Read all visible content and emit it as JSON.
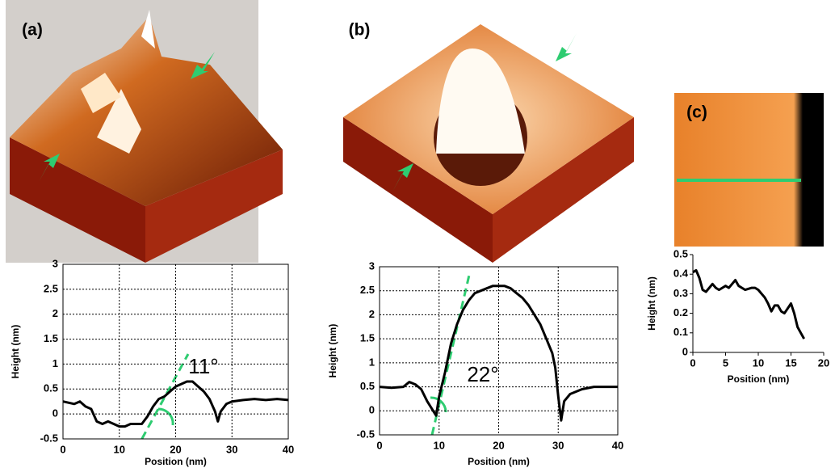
{
  "chart_data": [
    {
      "type": "line",
      "label": "(a)",
      "annotation": "11°",
      "xlabel": "Position (nm)",
      "ylabel": "Height (nm)",
      "color": "#000000",
      "grid": true,
      "x": [
        0,
        2,
        3,
        4,
        5,
        6,
        7,
        8,
        9,
        10,
        11,
        12,
        13,
        14,
        15,
        16,
        17,
        18,
        19,
        20,
        21,
        22,
        23,
        24,
        25,
        26,
        27,
        27.5,
        28,
        29,
        30,
        32,
        34,
        36,
        38,
        40
      ],
      "values": [
        0.25,
        0.2,
        0.25,
        0.15,
        0.1,
        -0.15,
        -0.2,
        -0.15,
        -0.2,
        -0.25,
        -0.25,
        -0.2,
        -0.2,
        -0.2,
        -0.05,
        0.15,
        0.3,
        0.35,
        0.45,
        0.55,
        0.6,
        0.65,
        0.65,
        0.55,
        0.45,
        0.3,
        0.05,
        -0.15,
        0.05,
        0.2,
        0.25,
        0.28,
        0.3,
        0.28,
        0.3,
        0.28
      ],
      "xlim": [
        0,
        40
      ],
      "xticks": [
        0,
        10,
        20,
        30,
        40
      ],
      "ylim": [
        -0.5,
        3
      ],
      "yticks": [
        -0.5,
        0,
        0.5,
        1,
        1.5,
        2,
        2.5,
        3
      ]
    },
    {
      "type": "line",
      "label": "(b)",
      "annotation": "22°",
      "xlabel": "Position (nm)",
      "ylabel": "Height (nm)",
      "color": "#000000",
      "grid": true,
      "x": [
        0,
        2,
        4,
        5,
        6,
        7,
        8,
        9,
        9.5,
        10,
        11,
        12,
        13,
        14,
        15,
        16,
        17,
        18,
        19,
        20,
        21,
        22,
        23,
        24,
        25,
        26,
        27,
        28,
        29,
        29.5,
        30,
        30.5,
        31,
        32,
        34,
        36,
        38,
        40
      ],
      "values": [
        0.5,
        0.48,
        0.5,
        0.6,
        0.55,
        0.45,
        0.2,
        0,
        -0.1,
        0.3,
        0.8,
        1.4,
        1.8,
        2.1,
        2.3,
        2.45,
        2.5,
        2.55,
        2.6,
        2.6,
        2.6,
        2.55,
        2.45,
        2.35,
        2.2,
        2,
        1.8,
        1.5,
        1.2,
        0.9,
        0.3,
        -0.2,
        0.2,
        0.35,
        0.45,
        0.5,
        0.5,
        0.5
      ],
      "xlim": [
        0,
        40
      ],
      "xticks": [
        0,
        10,
        20,
        30,
        40
      ],
      "ylim": [
        -0.5,
        3
      ],
      "yticks": [
        -0.5,
        0,
        0.5,
        1,
        1.5,
        2,
        2.5,
        3
      ]
    },
    {
      "type": "line",
      "label": "(c)",
      "xlabel": "Position (nm)",
      "ylabel": "Height (nm)",
      "color": "#000000",
      "grid": false,
      "x": [
        0,
        0.5,
        1,
        1.5,
        2,
        2.5,
        3,
        3.5,
        4,
        5,
        5.5,
        6,
        6.5,
        7,
        8,
        9,
        9.5,
        10,
        11,
        11.5,
        12,
        12.5,
        13,
        13.5,
        14,
        15,
        15.5,
        16,
        16.5,
        17
      ],
      "values": [
        0.41,
        0.42,
        0.38,
        0.32,
        0.31,
        0.33,
        0.35,
        0.33,
        0.32,
        0.34,
        0.33,
        0.35,
        0.37,
        0.34,
        0.32,
        0.33,
        0.33,
        0.32,
        0.28,
        0.25,
        0.21,
        0.24,
        0.24,
        0.21,
        0.2,
        0.25,
        0.2,
        0.13,
        0.1,
        0.07
      ],
      "xlim": [
        0,
        20
      ],
      "xticks": [
        0,
        5,
        10,
        15,
        20
      ],
      "ylim": [
        0,
        0.5
      ],
      "yticks": [
        0,
        0.1,
        0.2,
        0.3,
        0.4,
        0.5
      ]
    }
  ]
}
